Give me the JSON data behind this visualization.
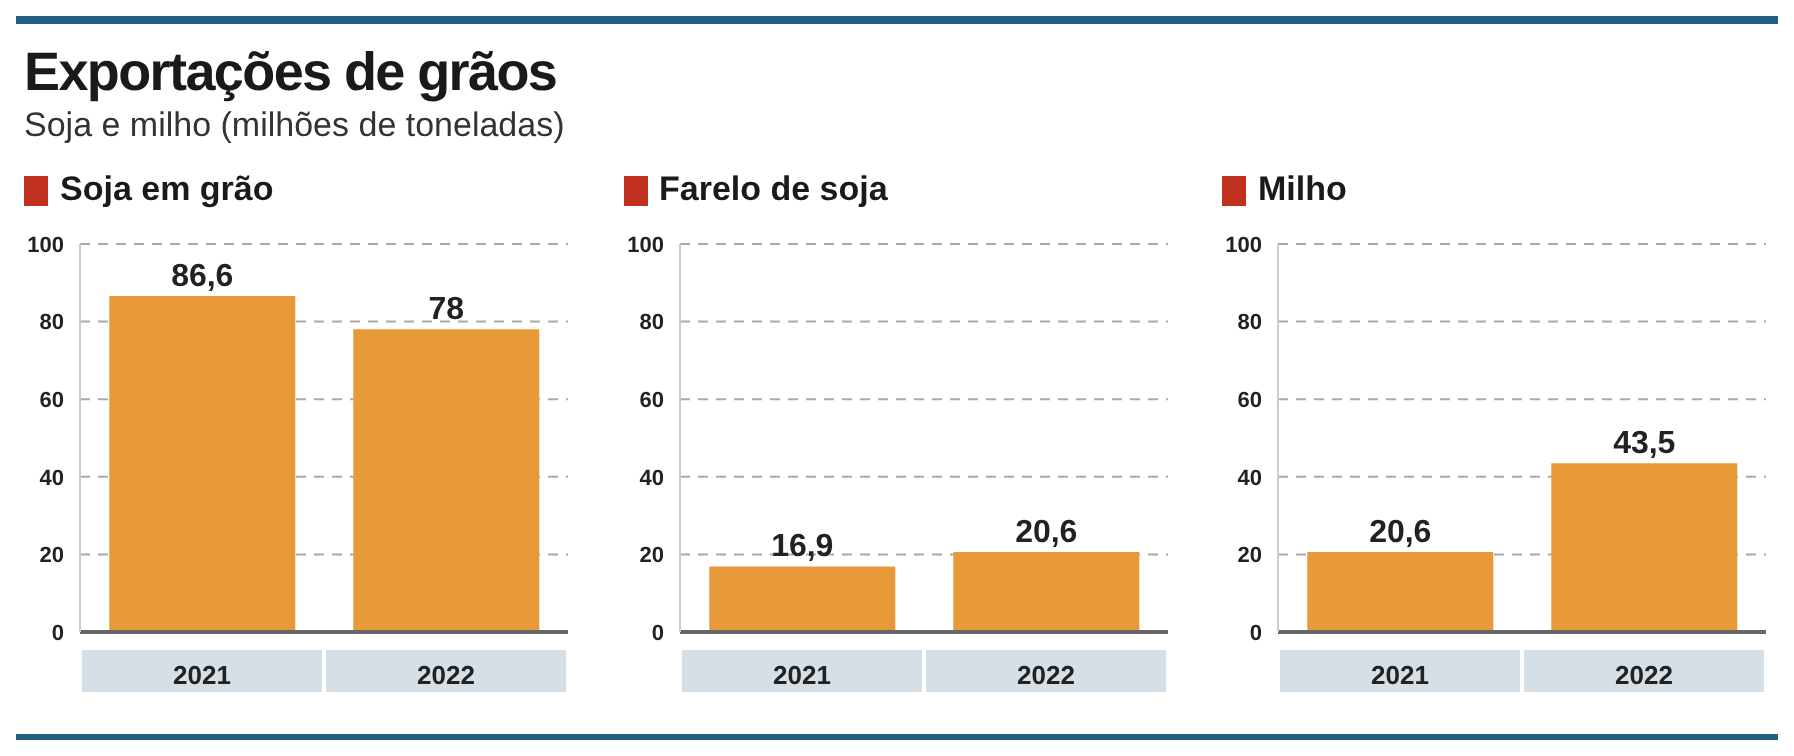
{
  "chart_data": [
    {
      "type": "other",
      "title": "Exportações de grãos",
      "subtitle": "Soja e milho (milhões de toneladas)"
    },
    {
      "type": "bar",
      "title": "Soja em grão",
      "categories": [
        "2021",
        "2022"
      ],
      "values": [
        86.6,
        78
      ],
      "value_labels": [
        "86,6",
        "78"
      ],
      "color": "#e8993a",
      "ylim": [
        0,
        100
      ],
      "yticks": [
        0,
        20,
        40,
        60,
        80,
        100
      ],
      "grid": true
    },
    {
      "type": "bar",
      "title": "Farelo de soja",
      "categories": [
        "2021",
        "2022"
      ],
      "values": [
        16.9,
        20.6
      ],
      "value_labels": [
        "16,9",
        "20,6"
      ],
      "color": "#e8993a",
      "ylim": [
        0,
        100
      ],
      "yticks": [
        0,
        20,
        40,
        60,
        80,
        100
      ],
      "grid": true
    },
    {
      "type": "bar",
      "title": "Milho",
      "categories": [
        "2021",
        "2022"
      ],
      "values": [
        20.6,
        43.5
      ],
      "value_labels": [
        "20,6",
        "43,5"
      ],
      "color": "#e8993a",
      "ylim": [
        0,
        100
      ],
      "yticks": [
        0,
        20,
        40,
        60,
        80,
        100
      ],
      "grid": true
    }
  ]
}
